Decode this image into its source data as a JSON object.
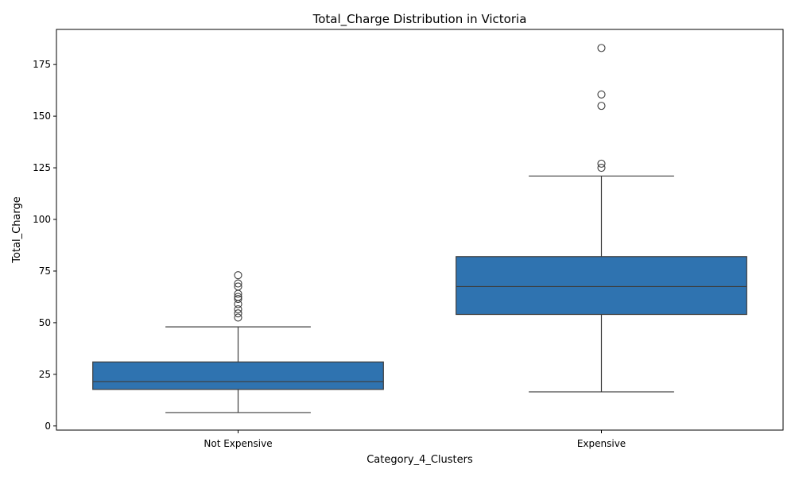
{
  "chart_data": {
    "type": "box",
    "title": "Total_Charge Distribution in Victoria",
    "xlabel": "Category_4_Clusters",
    "ylabel": "Total_Charge",
    "ylim": [
      -2,
      192
    ],
    "yticks": [
      0,
      25,
      50,
      75,
      100,
      125,
      150,
      175
    ],
    "grid": false,
    "legend": "none",
    "box_color": "#2f73b0",
    "line_color": "#3d3d3d",
    "categories": [
      "Not Expensive",
      "Expensive"
    ],
    "boxes": [
      {
        "category": "Not Expensive",
        "whisker_low": 6.5,
        "q1": 17.7,
        "median": 21.5,
        "q3": 31.0,
        "whisker_high": 48.0,
        "outliers": [
          52.5,
          54.5,
          56.5,
          59.0,
          61.5,
          62.5,
          64.0,
          67.5,
          69.0,
          73.0
        ]
      },
      {
        "category": "Expensive",
        "whisker_low": 16.5,
        "q1": 54.0,
        "median": 67.5,
        "q3": 82.0,
        "whisker_high": 121.0,
        "outliers": [
          125.0,
          127.0,
          155.0,
          160.5,
          183.0
        ]
      }
    ]
  }
}
